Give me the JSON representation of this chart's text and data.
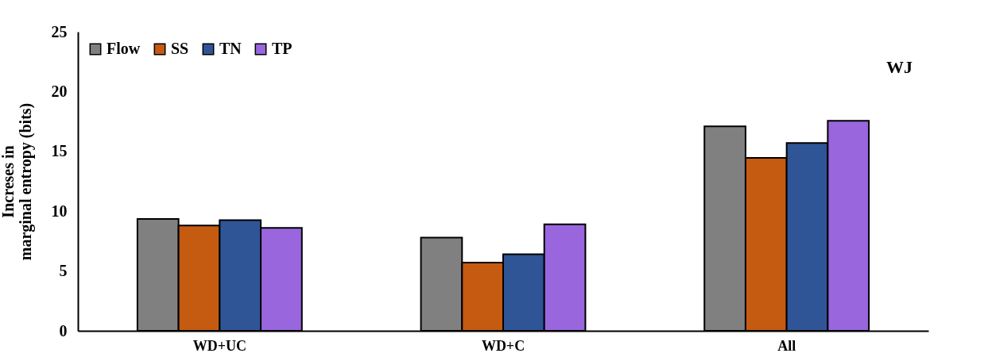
{
  "chart_data": {
    "type": "bar",
    "ylabel": "Increses in\nmarginal entropy (bits)",
    "categories": [
      "WD+UC",
      "WD+C",
      "All"
    ],
    "series": [
      {
        "name": "Flow",
        "color": "#808080",
        "values": [
          9.35,
          7.8,
          17.1
        ]
      },
      {
        "name": "SS",
        "color": "#c55a11",
        "values": [
          8.8,
          5.7,
          14.45
        ]
      },
      {
        "name": "TN",
        "color": "#2f5597",
        "values": [
          9.25,
          6.4,
          15.7
        ]
      },
      {
        "name": "TP",
        "color": "#9966dd",
        "values": [
          8.6,
          8.9,
          17.55
        ]
      }
    ],
    "ylim": [
      0,
      25
    ],
    "yticks": [
      0,
      5,
      10,
      15,
      20,
      25
    ],
    "grid": false,
    "legend": "top left",
    "annotations": [
      "WJ"
    ]
  }
}
